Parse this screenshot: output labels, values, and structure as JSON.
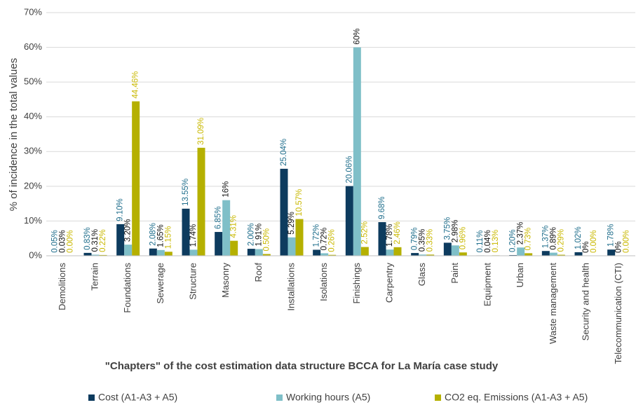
{
  "chart_data": {
    "type": "bar",
    "xlabel": "\"Chapters\" of the cost estimation data structure BCCA for La María case study",
    "ylabel": "% of incidence in the total values",
    "categories": [
      "Demolitions",
      "Terrain",
      "Foundations",
      "Sewerage",
      "Structure",
      "Masonry",
      "Roof",
      "Installations",
      "Isolations",
      "Finishings",
      "Carpentry",
      "Glass",
      "Paint",
      "Equipment",
      "Urban",
      "Waste management",
      "Security and health",
      "Telecommunication (CTI)"
    ],
    "series": [
      {
        "name": "Cost (A1-A3 + A5)",
        "color": "#0d3b5e",
        "values": [
          0.05,
          0.83,
          9.1,
          2.08,
          13.55,
          6.85,
          2.0,
          25.04,
          1.72,
          20.06,
          9.68,
          0.79,
          3.75,
          0.11,
          0.2,
          1.37,
          1.02,
          1.78
        ],
        "value_labels": [
          "0.05%",
          "0.83%",
          "9.10%",
          "2.08%",
          "13.55%",
          "6.85%",
          "2.00%",
          "25.04%",
          "1.72%",
          "20.06%",
          "9.68%",
          "0.79%",
          "3.75%",
          "0.11%",
          "0.20%",
          "1.37%",
          "1.02%",
          "1.78%"
        ]
      },
      {
        "name": "Working hours (A5)",
        "color": "#7fbfc8",
        "values": [
          0.03,
          0.31,
          3.2,
          1.65,
          1.74,
          16,
          1.91,
          5.29,
          0.72,
          60,
          1.78,
          0.35,
          2.98,
          0.04,
          2.37,
          0.89,
          0,
          0
        ],
        "value_labels": [
          "0.03%",
          "0.31%",
          "3.20%",
          "1.65%",
          "1.74%",
          "16%",
          "1.91%",
          "5.29%",
          "0.72%",
          "60%",
          "1.78%",
          "0.35%",
          "2.98%",
          "0.04%",
          "2.37%",
          "0.89%",
          "0%",
          "0%"
        ]
      },
      {
        "name": "CO2 eq. Emissions (A1-A3 + A5)",
        "color": "#b5b000",
        "values": [
          0.0,
          0.22,
          44.46,
          1.15,
          31.09,
          4.31,
          0.5,
          10.57,
          0.26,
          2.52,
          2.46,
          0.33,
          0.96,
          0.13,
          0.73,
          0.29,
          0.0,
          0.0
        ],
        "value_labels": [
          "0.00%",
          "0.22%",
          "44.46%",
          "1.15%",
          "31.09%",
          "4.31%",
          "0.50%",
          "10.57%",
          "0.26%",
          "2.52%",
          "2.46%",
          "0.33%",
          "0.96%",
          "0.13%",
          "0.73%",
          "0.29%",
          "0.00%",
          "0.00%"
        ]
      }
    ],
    "ylim": [
      0,
      70
    ],
    "yticks": [
      {
        "value": 0,
        "label": "0%"
      },
      {
        "value": 10,
        "label": "10%"
      },
      {
        "value": 20,
        "label": "20%"
      },
      {
        "value": 30,
        "label": "30%"
      },
      {
        "value": 40,
        "label": "40%"
      },
      {
        "value": 50,
        "label": "50%"
      },
      {
        "value": 60,
        "label": "60%"
      },
      {
        "value": 70,
        "label": "70%"
      }
    ],
    "grid": true,
    "legend": "bottom"
  }
}
